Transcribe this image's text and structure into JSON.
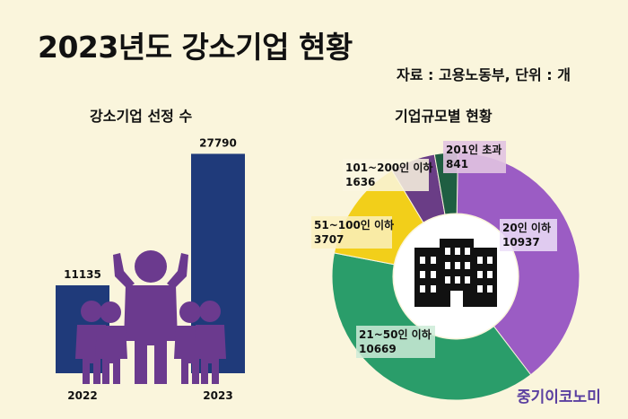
{
  "header": {
    "title": "2023년도 강소기업 현황",
    "source": "자료 : 고용노동부, 단위 : 개"
  },
  "brand": "중기이코노미",
  "chart_data": [
    {
      "type": "bar",
      "title": "강소기업 선정 수",
      "categories": [
        "2022",
        "2023"
      ],
      "values": [
        11135,
        27790
      ],
      "ylim": [
        0,
        30000
      ],
      "color": "#1f3a7a"
    },
    {
      "type": "pie",
      "title": "기업규모별 현황",
      "labels": [
        "20인 이하",
        "21~50인 이하",
        "51~100인 이하",
        "101~200인 이하",
        "201인 초과"
      ],
      "values": [
        10937,
        10669,
        3707,
        1636,
        841
      ],
      "colors": [
        "#9b5cc4",
        "#2a9d6a",
        "#f2cf1a",
        "#6a3d86",
        "#1f5e42"
      ]
    }
  ],
  "center_icon": "office-building-icon",
  "decor_icon": "group-people-icon"
}
